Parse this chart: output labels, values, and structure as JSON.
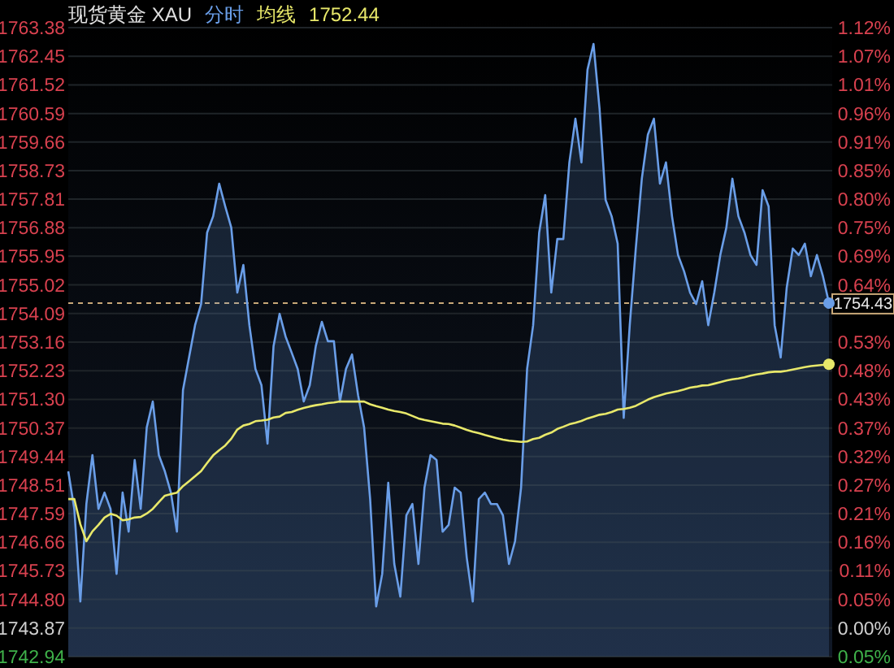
{
  "chart_data": {
    "type": "area",
    "title": "现货黄金 XAU",
    "annotations": [
      "1752.44"
    ],
    "grid": "y",
    "categories": [
      null,
      null,
      null,
      null,
      null,
      null,
      null,
      null,
      null,
      null,
      null,
      null,
      null,
      null,
      null,
      null,
      null,
      null,
      null,
      null,
      null,
      null,
      null,
      null,
      null,
      null,
      null,
      null,
      null,
      null,
      null,
      null,
      null,
      null,
      null,
      null,
      null,
      null,
      null,
      null,
      null,
      null,
      null,
      null,
      null,
      null,
      null,
      null,
      null,
      null,
      null,
      null,
      null,
      null,
      null,
      null,
      null,
      null,
      null,
      null,
      null,
      null,
      null,
      null,
      null,
      null,
      null,
      null,
      null,
      null,
      null,
      null,
      null,
      null,
      null,
      null,
      null,
      null,
      null,
      null,
      null,
      null,
      null,
      null,
      null,
      null,
      null,
      null,
      null,
      null,
      null,
      null,
      null,
      null,
      null,
      null,
      null,
      null,
      null,
      null,
      null,
      null,
      null,
      null,
      null,
      null,
      null,
      null,
      null,
      null,
      null,
      null,
      null,
      null,
      null,
      null,
      null,
      null,
      null,
      null,
      null,
      null,
      null,
      null,
      null,
      null,
      null
    ],
    "ylim": [
      1742.94,
      1763.38
    ],
    "yticks": [
      1742.94,
      1743.87,
      {
        "value": 1744.8,
        "label": "1744.80"
      },
      1745.73,
      1746.66,
      1747.59,
      1748.51,
      1749.44,
      1750.37,
      {
        "value": 1751.3,
        "label": "1751.30"
      },
      1752.23,
      1753.16,
      1754.09,
      1755.02,
      1755.95,
      1756.88,
      1757.81,
      1758.73,
      1759.66,
      1760.59,
      1761.52,
      1762.45,
      1763.38
    ],
    "y2lim": [
      -0.0533,
      1.12
    ],
    "y2ticks": [
      {
        "value": -0.0533,
        "label": "0.05%"
      },
      {
        "value": 0,
        "label": "0.00%"
      },
      {
        "value": 0.0533,
        "label": "0.05%"
      },
      {
        "value": 0.1067,
        "label": "0.11%"
      },
      {
        "value": 0.16,
        "label": "0.16%"
      },
      {
        "value": 0.2133,
        "label": "0.21%"
      },
      {
        "value": 0.2667,
        "label": "0.27%"
      },
      {
        "value": 0.32,
        "label": "0.32%"
      },
      {
        "value": 0.3733,
        "label": "0.37%"
      },
      {
        "value": 0.4267,
        "label": "0.43%"
      },
      {
        "value": 0.48,
        "label": "0.48%"
      },
      {
        "value": 0.5333,
        "label": "0.53%"
      },
      {
        "value": 0.64,
        "label": "0.64%"
      },
      {
        "value": 0.6933,
        "label": "0.69%"
      },
      {
        "value": 0.7467,
        "label": "0.75%"
      },
      {
        "value": 0.8,
        "label": "0.80%"
      },
      {
        "value": 0.8533,
        "label": "0.85%"
      },
      {
        "value": 0.9067,
        "label": "0.91%"
      },
      {
        "value": 0.96,
        "label": "0.96%"
      },
      {
        "value": 1.0133,
        "label": "1.01%"
      },
      {
        "value": 1.0667,
        "label": "1.07%"
      },
      {
        "value": 1.12,
        "label": "1.12%"
      }
    ],
    "ref_lines": [
      {
        "axis": "y",
        "value": 1754.43,
        "label": "1754.43",
        "line_style": "dashed",
        "color": "#c8a878"
      }
    ],
    "series": [
      {
        "name": "分时",
        "color": "#6a9ee8",
        "values": [
          1748.96,
          1747.74,
          1744.73,
          1747.9,
          1749.49,
          1747.74,
          1748.27,
          1747.74,
          1745.63,
          1748.27,
          1747.0,
          1749.33,
          1747.74,
          1750.39,
          1751.23,
          1749.49,
          1748.96,
          1748.27,
          1747.0,
          1751.6,
          1752.66,
          1753.71,
          1754.4,
          1756.72,
          1757.25,
          1758.31,
          1757.57,
          1756.88,
          1754.77,
          1755.67,
          1753.71,
          1752.29,
          1751.76,
          1749.86,
          1753.03,
          1754.08,
          1753.34,
          1752.82,
          1752.29,
          1751.23,
          1751.76,
          1753.03,
          1753.82,
          1753.19,
          1753.19,
          1751.23,
          1752.29,
          1752.76,
          1751.44,
          1750.39,
          1748.06,
          1744.57,
          1745.63,
          1748.59,
          1745.95,
          1744.89,
          1747.53,
          1747.9,
          1745.95,
          1748.43,
          1749.49,
          1749.33,
          1747.0,
          1747.22,
          1748.43,
          1748.27,
          1746.16,
          1744.73,
          1748.06,
          1748.27,
          1747.9,
          1747.9,
          1747.53,
          1745.95,
          1746.69,
          1748.43,
          1752.29,
          1753.71,
          1756.72,
          1757.94,
          1754.77,
          1756.51,
          1756.51,
          1759.0,
          1760.42,
          1759.0,
          1762.01,
          1762.85,
          1760.74,
          1757.78,
          1757.25,
          1756.36,
          1750.7,
          1753.71,
          1756.2,
          1758.47,
          1759.9,
          1760.42,
          1758.31,
          1759.0,
          1757.25,
          1755.99,
          1755.46,
          1754.77,
          1754.4,
          1755.14,
          1753.71,
          1754.77,
          1755.99,
          1756.88,
          1758.47,
          1757.25,
          1756.72,
          1755.99,
          1755.67,
          1758.1,
          1757.57,
          1753.71,
          1752.66,
          1754.93,
          1756.2,
          1755.99,
          1756.36,
          1755.3,
          1755.99,
          1755.3,
          1754.43
        ]
      },
      {
        "name": "均线",
        "type": "line",
        "color": "#e8e86a",
        "values": [
          1748.06,
          1748.06,
          1747.24,
          1746.69,
          1747.01,
          1747.22,
          1747.46,
          1747.58,
          1747.52,
          1747.37,
          1747.4,
          1747.46,
          1747.48,
          1747.59,
          1747.74,
          1747.96,
          1748.17,
          1748.22,
          1748.27,
          1748.48,
          1748.64,
          1748.8,
          1748.97,
          1749.23,
          1749.48,
          1749.65,
          1749.8,
          1750.02,
          1750.32,
          1750.45,
          1750.5,
          1750.59,
          1750.61,
          1750.64,
          1750.71,
          1750.74,
          1750.86,
          1750.89,
          1750.96,
          1751.02,
          1751.07,
          1751.11,
          1751.14,
          1751.18,
          1751.2,
          1751.23,
          1751.23,
          1751.23,
          1751.23,
          1751.23,
          1751.14,
          1751.08,
          1751.03,
          1750.97,
          1750.92,
          1750.89,
          1750.84,
          1750.76,
          1750.68,
          1750.63,
          1750.59,
          1750.55,
          1750.51,
          1750.5,
          1750.45,
          1750.38,
          1750.31,
          1750.25,
          1750.2,
          1750.14,
          1750.09,
          1750.04,
          1749.99,
          1749.96,
          1749.94,
          1749.92,
          1749.93,
          1750.01,
          1750.05,
          1750.15,
          1750.22,
          1750.34,
          1750.41,
          1750.49,
          1750.54,
          1750.6,
          1750.68,
          1750.74,
          1750.8,
          1750.83,
          1750.89,
          1750.97,
          1750.99,
          1751.03,
          1751.09,
          1751.19,
          1751.29,
          1751.37,
          1751.43,
          1751.49,
          1751.53,
          1751.57,
          1751.62,
          1751.68,
          1751.71,
          1751.75,
          1751.76,
          1751.81,
          1751.86,
          1751.91,
          1751.95,
          1751.98,
          1752.02,
          1752.07,
          1752.11,
          1752.14,
          1752.18,
          1752.2,
          1752.2,
          1752.23,
          1752.27,
          1752.31,
          1752.35,
          1752.38,
          1752.4,
          1752.42,
          1752.44
        ]
      }
    ]
  }
}
